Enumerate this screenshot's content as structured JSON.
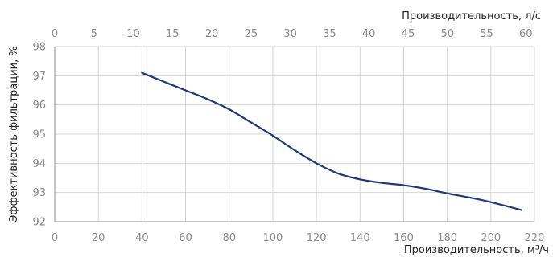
{
  "chart_data": {
    "type": "line",
    "ylabel": "Эффективность фильтрации, %",
    "xlabel_bottom": "Производительность, м³/ч",
    "xlabel_top": "Производительность, л/с",
    "x_bottom": {
      "ticks": [
        0,
        20,
        40,
        60,
        80,
        100,
        120,
        140,
        160,
        180,
        200,
        220
      ],
      "range": [
        0,
        220
      ]
    },
    "x_top": {
      "ticks": [
        0,
        5,
        10,
        15,
        20,
        25,
        30,
        35,
        40,
        45,
        50,
        55,
        60
      ],
      "range": [
        0,
        61.1
      ]
    },
    "y": {
      "ticks": [
        92,
        93,
        94,
        95,
        96,
        97,
        98
      ],
      "range": [
        92,
        98
      ]
    },
    "grid": true,
    "series": [
      {
        "color": "#1e3a78",
        "x": [
          40,
          50,
          60,
          70,
          80,
          90,
          100,
          110,
          120,
          130,
          140,
          150,
          160,
          170,
          180,
          190,
          200,
          214
        ],
        "y": [
          97.1,
          96.8,
          96.5,
          96.2,
          95.85,
          95.4,
          94.95,
          94.45,
          94.0,
          93.65,
          93.45,
          93.33,
          93.25,
          93.13,
          92.97,
          92.83,
          92.67,
          92.4
        ]
      }
    ]
  },
  "colors": {
    "grid": "#d4d4d4",
    "axis": "#a0a0a0",
    "tick_text": "#8a8a8a",
    "label_text": "#222222"
  }
}
